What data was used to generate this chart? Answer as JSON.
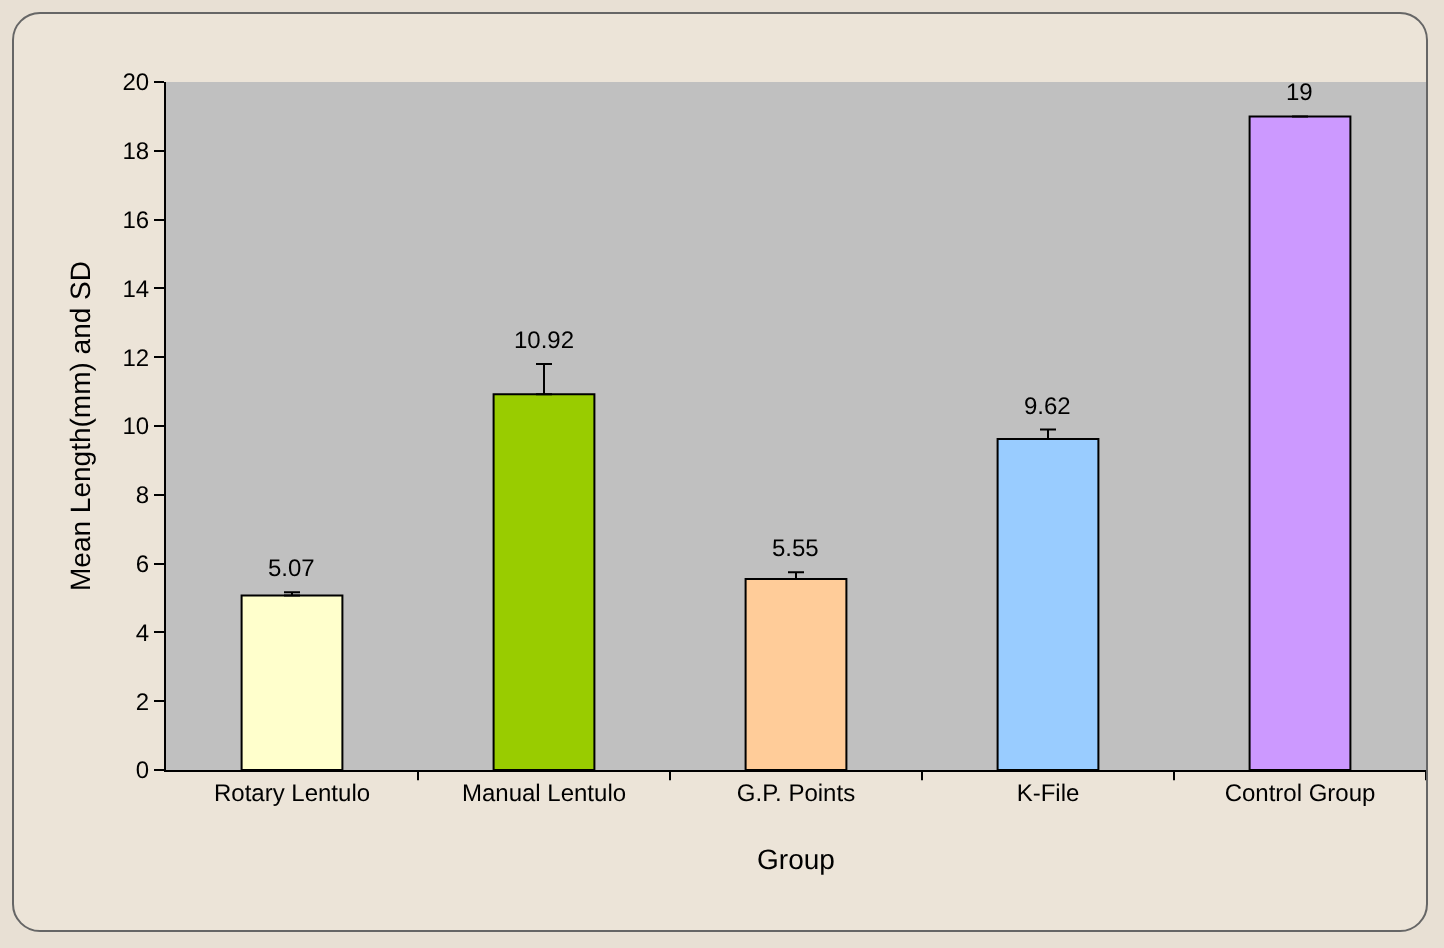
{
  "chart_data": {
    "type": "bar",
    "xlabel": "Group",
    "ylabel": "Mean Length(mm) and SD",
    "categories": [
      "Rotary Lentulo",
      "Manual Lentulo",
      "G.P. Points",
      "K-File",
      "Control Group"
    ],
    "values": [
      5.07,
      10.92,
      5.55,
      9.62,
      19
    ],
    "colors": [
      "#ffffcc",
      "#99cc00",
      "#ffcc99",
      "#99ccff",
      "#cc99ff"
    ],
    "errors": [
      [
        5.07,
        5.17
      ],
      [
        10.92,
        11.8
      ],
      [
        5.55,
        5.75
      ],
      [
        9.62,
        9.9
      ],
      null
    ],
    "data_labels": true,
    "grid": false,
    "ylim": [
      0,
      20
    ],
    "yticks": [
      0,
      2,
      4,
      6,
      8,
      10,
      12,
      14,
      16,
      18,
      20
    ]
  }
}
